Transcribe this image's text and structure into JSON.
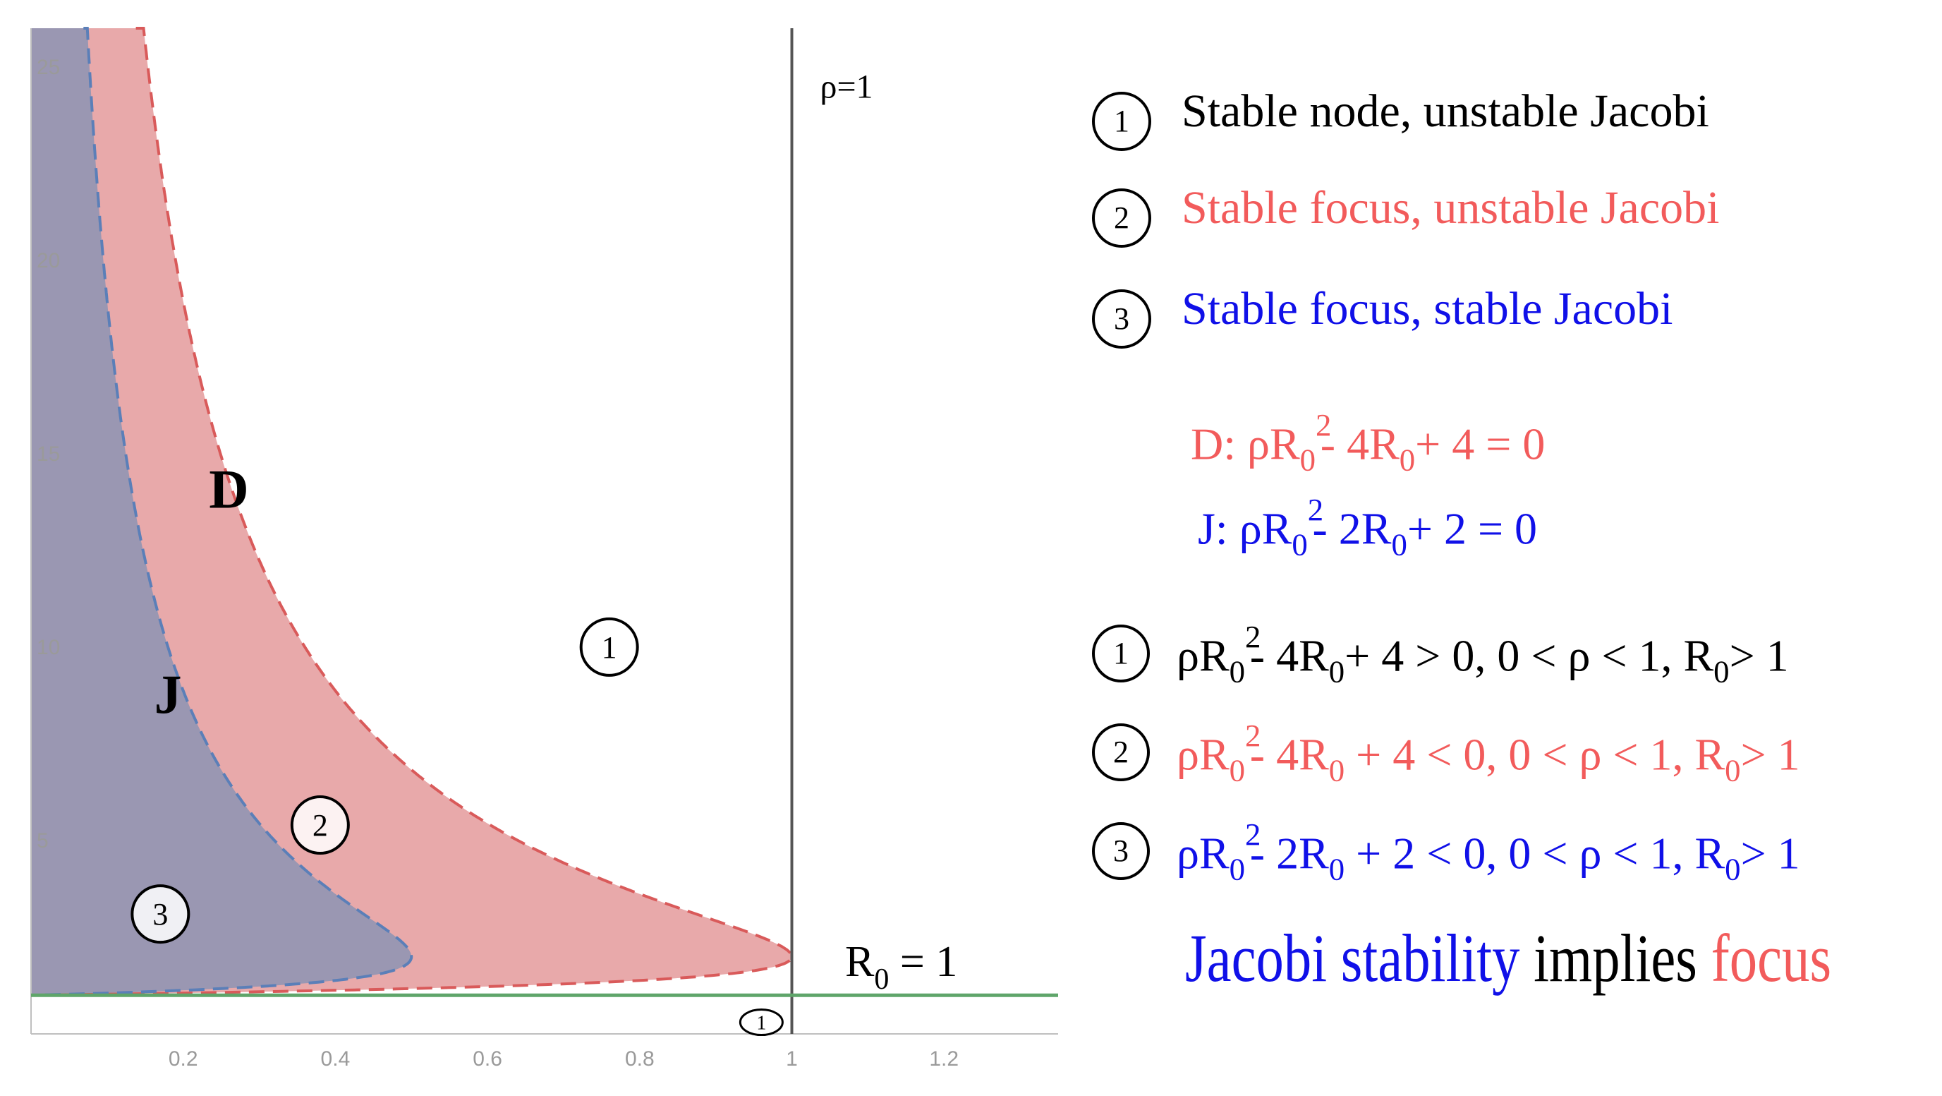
{
  "chart_data": {
    "type": "area",
    "xlim": [
      0,
      1.35
    ],
    "ylim": [
      0,
      26
    ],
    "x_ticks": [
      "0.2",
      "0.4",
      "0.6",
      "0.8",
      "1",
      "1.2"
    ],
    "y_ticks": [
      "5",
      "10",
      "15",
      "20",
      "25"
    ],
    "vertical_line": {
      "x": 1,
      "label": "ρ=1"
    },
    "horizontal_line": {
      "y": 1,
      "label_main": "R",
      "label_sub": "0",
      "label_rest": " = 1"
    },
    "curves": [
      {
        "name": "D",
        "equation": "ρR0² - 4R0 + 4 = 0",
        "color": "#d95a5a",
        "fill": "#e8a9aa",
        "rho_max": 1
      },
      {
        "name": "J",
        "equation": "ρR0² - 2R0 + 2 = 0",
        "color": "#5b7fb8",
        "fill": "#9a97b2",
        "rho_max": 0.5
      }
    ],
    "region_markers": [
      {
        "id": "1",
        "x": 0.76,
        "y": 10
      },
      {
        "id": "2",
        "x": 0.38,
        "y": 5.4
      },
      {
        "id": "3",
        "x": 0.17,
        "y": 3.1
      },
      {
        "id": "1",
        "x": 0.96,
        "y": 0.3
      }
    ],
    "curve_labels": [
      {
        "text": "D",
        "x": 0.26,
        "y": 13.6
      },
      {
        "text": "J",
        "x": 0.18,
        "y": 8.3
      }
    ]
  },
  "legend": [
    {
      "num": "1",
      "text": "Stable node, unstable Jacobi",
      "color": "#000000"
    },
    {
      "num": "2",
      "text": "Stable focus, unstable Jacobi",
      "color": "#f25b5b"
    },
    {
      "num": "3",
      "text": "Stable focus, stable Jacobi",
      "color": "#1010e8"
    }
  ],
  "equations": {
    "d": {
      "prefix": "D: ρR",
      "sup": "2",
      "sub": "0",
      "mid": "- 4R",
      "sub2": "0",
      "end": "+ 4 = 0"
    },
    "j": {
      "prefix": "J: ρR",
      "sup": "2",
      "sub": "0",
      "mid": "- 2R",
      "sub2": "0",
      "end": "+ 2 = 0"
    }
  },
  "inequalities": [
    {
      "num": "1",
      "a": "ρR",
      "sup": "2",
      "sub": "0",
      "b": "- 4R",
      "sub2": "0",
      "c": "+ 4 > 0, 0 < ρ < 1, R",
      "sub3": "0",
      "d": "> 1"
    },
    {
      "num": "2",
      "a": "ρR",
      "sup": "2",
      "sub": "0",
      "b": "- 4R",
      "sub2": "0",
      "c": " + 4 < 0, 0 < ρ < 1, R",
      "sub3": "0",
      "d": "> 1"
    },
    {
      "num": "3",
      "a": "ρR",
      "sup": "2",
      "sub": "0",
      "b": "- 2R",
      "sub2": "0",
      "c": " + 2 < 0, 0 < ρ < 1, R",
      "sub3": "0",
      "d": "> 1"
    }
  ],
  "conclusion": {
    "part1": "Jacobi stability",
    "part2": " implies ",
    "part3": "focus"
  }
}
